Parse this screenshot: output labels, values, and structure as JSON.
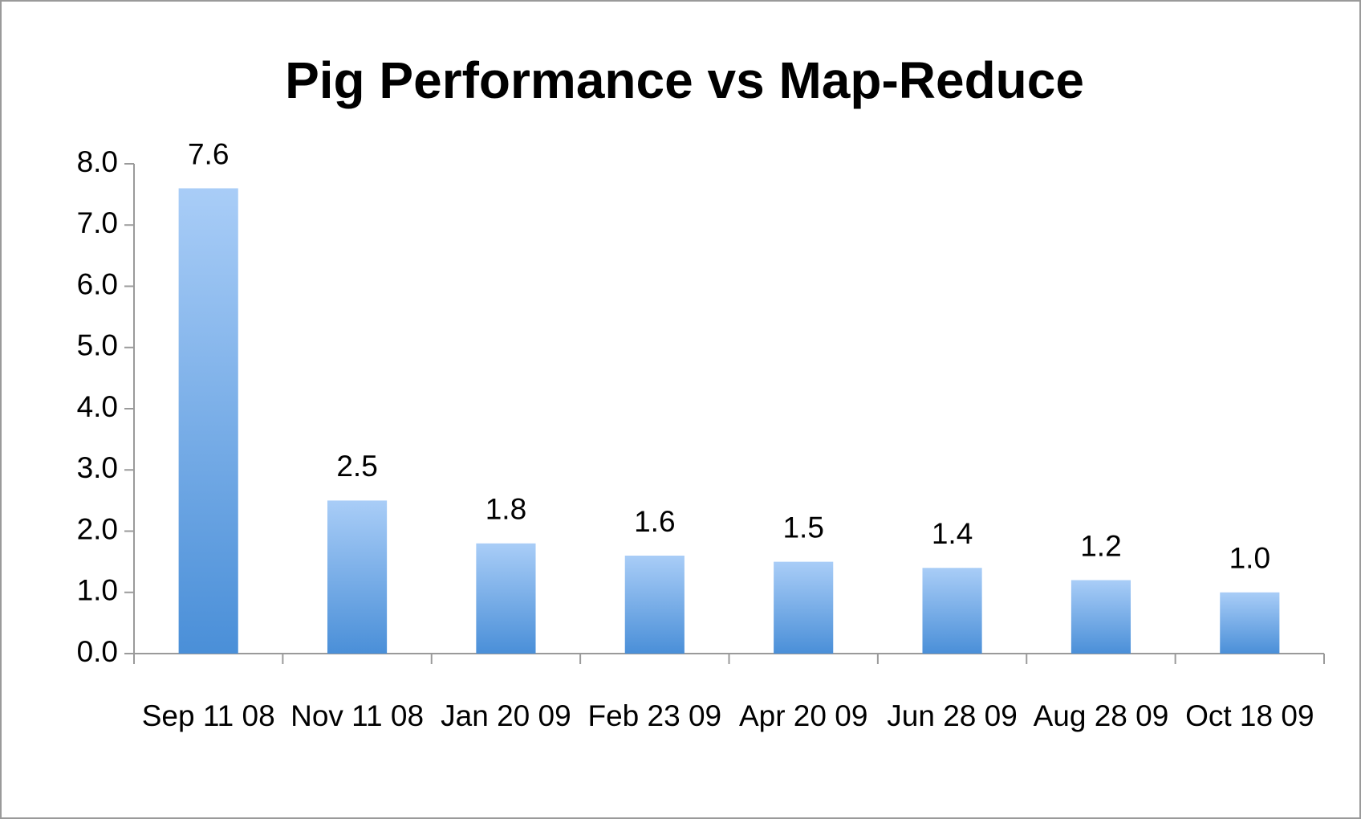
{
  "chart_data": {
    "type": "bar",
    "title": "Pig Performance vs Map-Reduce",
    "categories": [
      "Sep 11 08",
      "Nov 11 08",
      "Jan 20 09",
      "Feb 23 09",
      "Apr 20 09",
      "Jun 28 09",
      "Aug 28 09",
      "Oct 18 09"
    ],
    "values": [
      7.6,
      2.5,
      1.8,
      1.6,
      1.5,
      1.4,
      1.2,
      1.0
    ],
    "value_labels": [
      "7.6",
      "2.5",
      "1.8",
      "1.6",
      "1.5",
      "1.4",
      "1.2",
      "1.0"
    ],
    "color": "#4a8fd8",
    "ylim": [
      0,
      8
    ],
    "yticks": [
      {
        "value": 0,
        "label": "0.0"
      },
      {
        "value": 1,
        "label": "1.0"
      },
      {
        "value": 2,
        "label": "2.0"
      },
      {
        "value": 3,
        "label": "3.0"
      },
      {
        "value": 4,
        "label": "4.0"
      },
      {
        "value": 5,
        "label": "5.0"
      },
      {
        "value": 6,
        "label": "6.0"
      },
      {
        "value": 7,
        "label": "7.0"
      },
      {
        "value": 8,
        "label": "8.0"
      }
    ],
    "grid": false
  }
}
